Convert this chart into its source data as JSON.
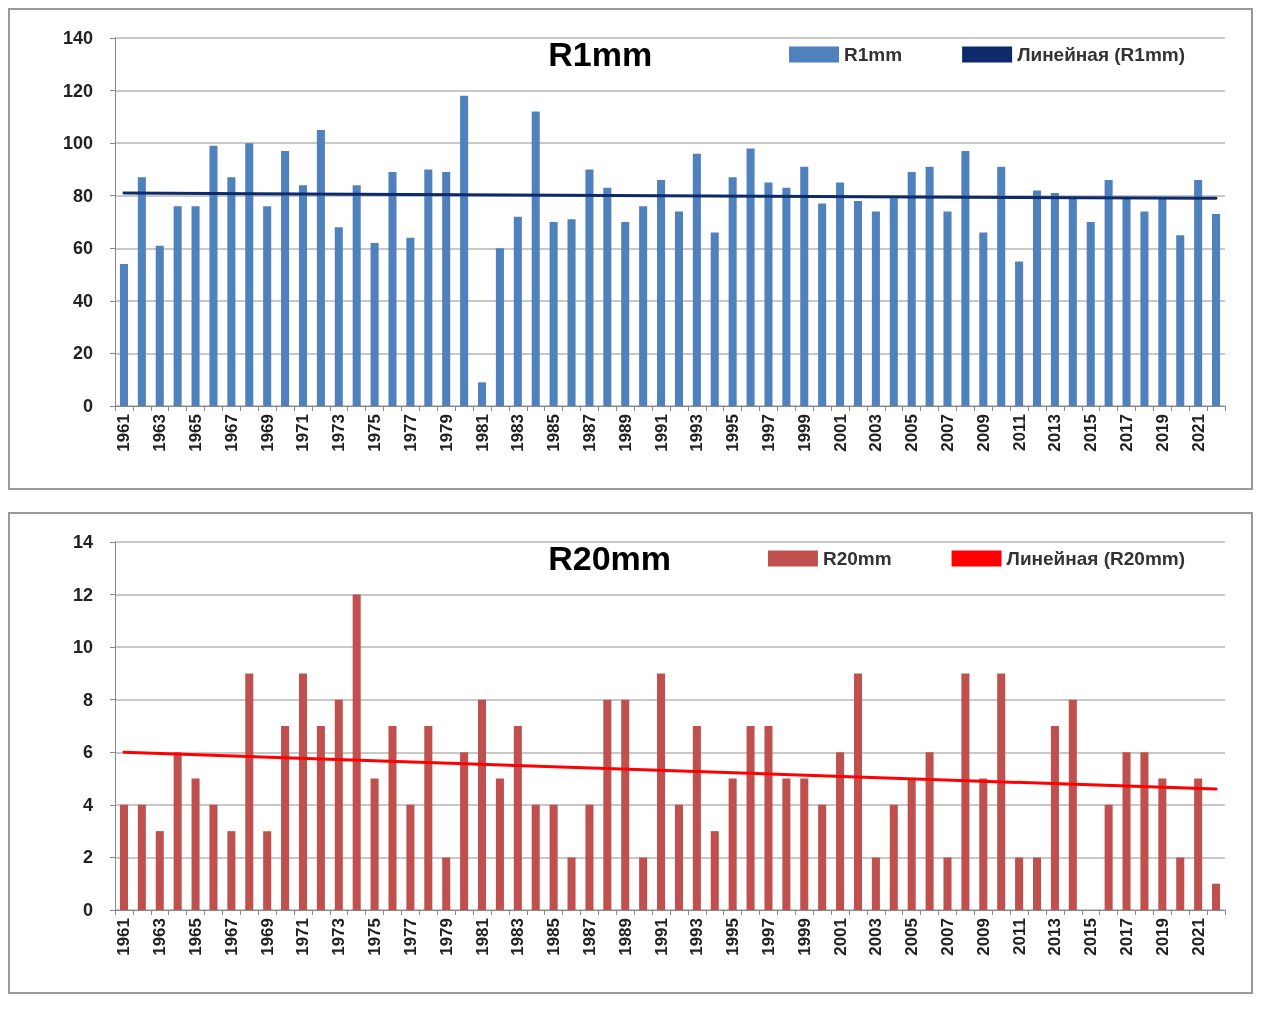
{
  "chart_data": [
    {
      "type": "bar",
      "title": "R1mm",
      "categories": [
        "1961",
        null,
        "1963",
        null,
        "1965",
        null,
        "1967",
        null,
        "1969",
        null,
        "1971",
        null,
        "1973",
        null,
        "1975",
        null,
        "1977",
        null,
        "1979",
        null,
        "1981",
        null,
        "1983",
        null,
        "1985",
        null,
        "1987",
        null,
        "1989",
        null,
        "1991",
        null,
        "1993",
        null,
        "1995",
        null,
        "1997",
        null,
        "1999",
        null,
        "2001",
        null,
        "2003",
        null,
        "2005",
        null,
        "2007",
        null,
        "2009",
        null,
        "2011",
        null,
        "2013",
        null,
        "2015",
        null,
        "2017",
        null,
        "2019",
        null,
        "2021",
        null
      ],
      "series": [
        {
          "name": "R1mm",
          "color": "#4f81bd",
          "values": [
            54,
            87,
            61,
            76,
            76,
            99,
            87,
            100,
            76,
            97,
            84,
            105,
            68,
            84,
            62,
            89,
            64,
            90,
            89,
            118,
            9,
            60,
            72,
            112,
            70,
            71,
            90,
            83,
            70,
            76,
            86,
            74,
            96,
            66,
            87,
            98,
            85,
            83,
            91,
            77,
            85,
            78,
            74,
            79,
            89,
            91,
            74,
            97,
            66,
            91,
            55,
            82,
            81,
            79,
            70,
            86,
            79,
            74,
            79,
            65,
            86,
            73
          ]
        },
        {
          "name": "Линейная (R1mm)",
          "type": "line",
          "color": "#0d2a6b",
          "values": [
            81,
            null,
            null,
            null,
            null,
            null,
            null,
            null,
            null,
            null,
            null,
            null,
            null,
            null,
            null,
            null,
            null,
            null,
            null,
            null,
            null,
            null,
            null,
            null,
            null,
            null,
            null,
            null,
            null,
            null,
            null,
            null,
            null,
            null,
            null,
            null,
            null,
            null,
            null,
            null,
            null,
            null,
            null,
            null,
            null,
            null,
            null,
            null,
            null,
            null,
            null,
            null,
            null,
            null,
            null,
            null,
            null,
            null,
            null,
            null,
            null,
            79
          ]
        }
      ],
      "ylim": [
        0,
        140
      ],
      "yticks": [
        0,
        20,
        40,
        60,
        80,
        100,
        120,
        140
      ],
      "grid": "y",
      "legend": "top right",
      "marker": "none"
    },
    {
      "type": "bar",
      "title": "R20mm",
      "categories": [
        "1961",
        null,
        "1963",
        null,
        "1965",
        null,
        "1967",
        null,
        "1969",
        null,
        "1971",
        null,
        "1973",
        null,
        "1975",
        null,
        "1977",
        null,
        "1979",
        null,
        "1981",
        null,
        "1983",
        null,
        "1985",
        null,
        "1987",
        null,
        "1989",
        null,
        "1991",
        null,
        "1993",
        null,
        "1995",
        null,
        "1997",
        null,
        "1999",
        null,
        "2001",
        null,
        "2003",
        null,
        "2005",
        null,
        "2007",
        null,
        "2009",
        null,
        "2011",
        null,
        "2013",
        null,
        "2015",
        null,
        "2017",
        null,
        "2019",
        null,
        "2021",
        null
      ],
      "series": [
        {
          "name": "R20mm",
          "color": "#c0504d",
          "values": [
            4,
            4,
            3,
            6,
            5,
            4,
            3,
            9,
            3,
            7,
            9,
            7,
            8,
            12,
            5,
            7,
            4,
            7,
            2,
            6,
            8,
            5,
            7,
            4,
            4,
            2,
            4,
            8,
            8,
            2,
            9,
            4,
            7,
            3,
            5,
            7,
            7,
            5,
            5,
            4,
            6,
            9,
            2,
            4,
            5,
            6,
            2,
            9,
            5,
            9,
            2,
            2,
            7,
            8,
            0,
            4,
            6,
            6,
            5,
            2,
            5,
            1
          ]
        },
        {
          "name": "Линейная (R20mm)",
          "type": "line",
          "color": "#ff0000",
          "values": [
            6,
            null,
            null,
            null,
            null,
            null,
            null,
            null,
            null,
            null,
            null,
            null,
            null,
            null,
            null,
            null,
            null,
            null,
            null,
            null,
            null,
            null,
            null,
            null,
            null,
            null,
            null,
            null,
            null,
            null,
            null,
            null,
            null,
            null,
            null,
            null,
            null,
            null,
            null,
            null,
            null,
            null,
            null,
            null,
            null,
            null,
            null,
            null,
            null,
            null,
            null,
            null,
            null,
            null,
            null,
            null,
            null,
            null,
            null,
            null,
            null,
            4.6
          ]
        }
      ],
      "ylim": [
        0,
        14
      ],
      "yticks": [
        0,
        2,
        4,
        6,
        8,
        10,
        12,
        14
      ],
      "grid": "y",
      "legend": "top right",
      "marker": "none"
    }
  ]
}
